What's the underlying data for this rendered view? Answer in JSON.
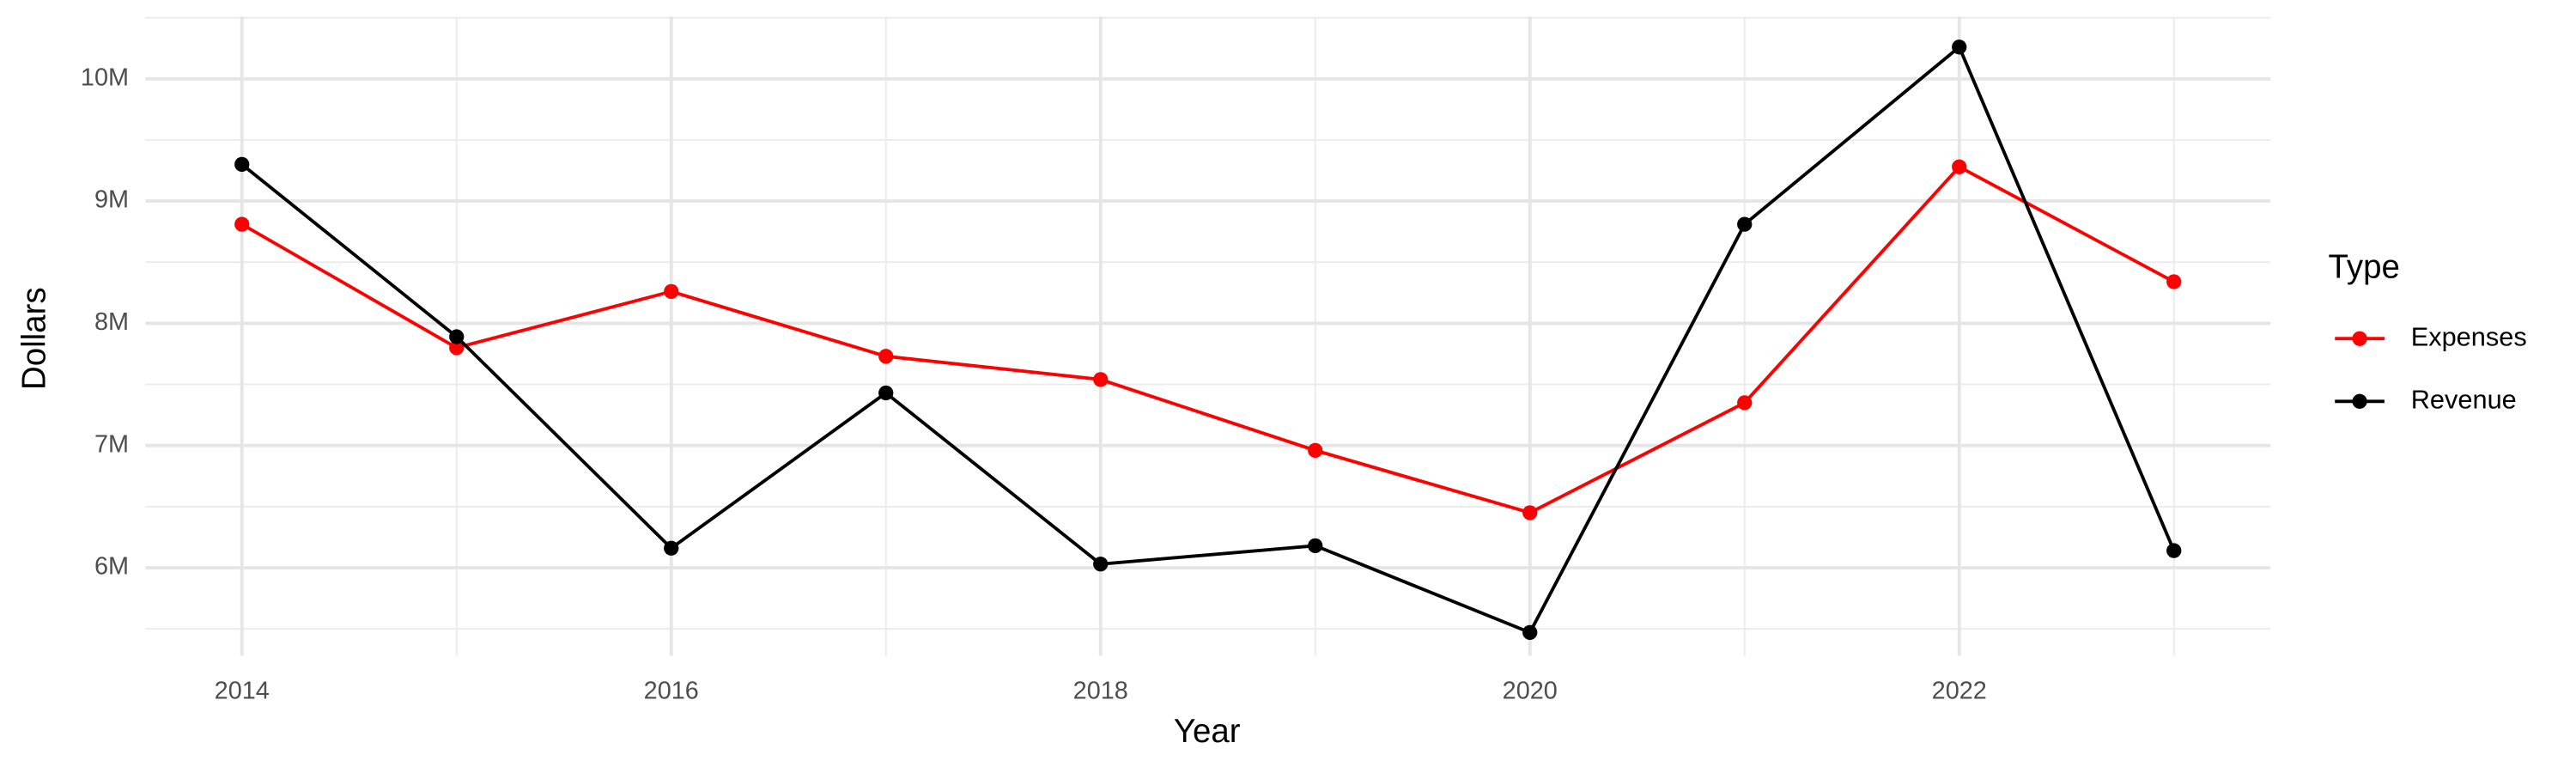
{
  "chart_data": {
    "type": "line",
    "x_label": "Year",
    "y_label": "Dollars",
    "legend_title": "Type",
    "legend": "right",
    "grid": true,
    "x": [
      2014,
      2015,
      2016,
      2017,
      2018,
      2019,
      2020,
      2021,
      2022,
      2023
    ],
    "series": [
      {
        "name": "Expenses",
        "color": "#ff0000",
        "values": [
          8810000,
          7800000,
          8260000,
          7730000,
          7540000,
          6960000,
          6450000,
          7350000,
          9280000,
          8340000
        ]
      },
      {
        "name": "Revenue",
        "color": "#000000",
        "values": [
          9300000,
          7890000,
          6160000,
          7430000,
          6030000,
          6180000,
          5470000,
          8810000,
          10260000,
          6140000
        ]
      }
    ],
    "xlim": [
      2013.55,
      2023.45
    ],
    "xticks": [
      2014,
      2016,
      2018,
      2020,
      2022
    ],
    "ylim": [
      5280000,
      10510000
    ],
    "yticks": [
      {
        "value": 6000000,
        "label": "6M"
      },
      {
        "value": 7000000,
        "label": "7M"
      },
      {
        "value": 8000000,
        "label": "8M"
      },
      {
        "value": 9000000,
        "label": "9M"
      },
      {
        "value": 10000000,
        "label": "10M"
      }
    ]
  }
}
